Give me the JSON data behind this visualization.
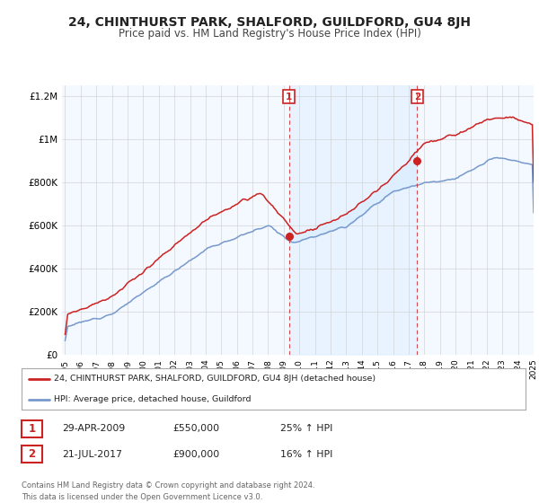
{
  "title": "24, CHINTHURST PARK, SHALFORD, GUILDFORD, GU4 8JH",
  "subtitle": "Price paid vs. HM Land Registry's House Price Index (HPI)",
  "title_fontsize": 10,
  "subtitle_fontsize": 8.5,
  "background_color": "#ffffff",
  "plot_bg_color": "#f4f8ff",
  "ylim": [
    0,
    1250000
  ],
  "yticks": [
    0,
    200000,
    400000,
    600000,
    800000,
    1000000,
    1200000
  ],
  "ytick_labels": [
    "£0",
    "£200K",
    "£400K",
    "£600K",
    "£800K",
    "£1M",
    "£1.2M"
  ],
  "grid_color": "#cccccc",
  "hpi_color": "#7799cc",
  "price_color": "#cc2222",
  "between_fill_color": "#ddeeff",
  "legend_line1": "24, CHINTHURST PARK, SHALFORD, GUILDFORD, GU4 8JH (detached house)",
  "legend_line2": "HPI: Average price, detached house, Guildford",
  "sale1_year": 2009.33,
  "sale1_price": 550000,
  "sale2_year": 2017.55,
  "sale2_price": 900000,
  "table_row1": [
    "1",
    "29-APR-2009",
    "£550,000",
    "25% ↑ HPI"
  ],
  "table_row2": [
    "2",
    "21-JUL-2017",
    "£900,000",
    "16% ↑ HPI"
  ],
  "footer": "Contains HM Land Registry data © Crown copyright and database right 2024.\nThis data is licensed under the Open Government Licence v3.0.",
  "xstart_year": 1995,
  "xend_year": 2025
}
